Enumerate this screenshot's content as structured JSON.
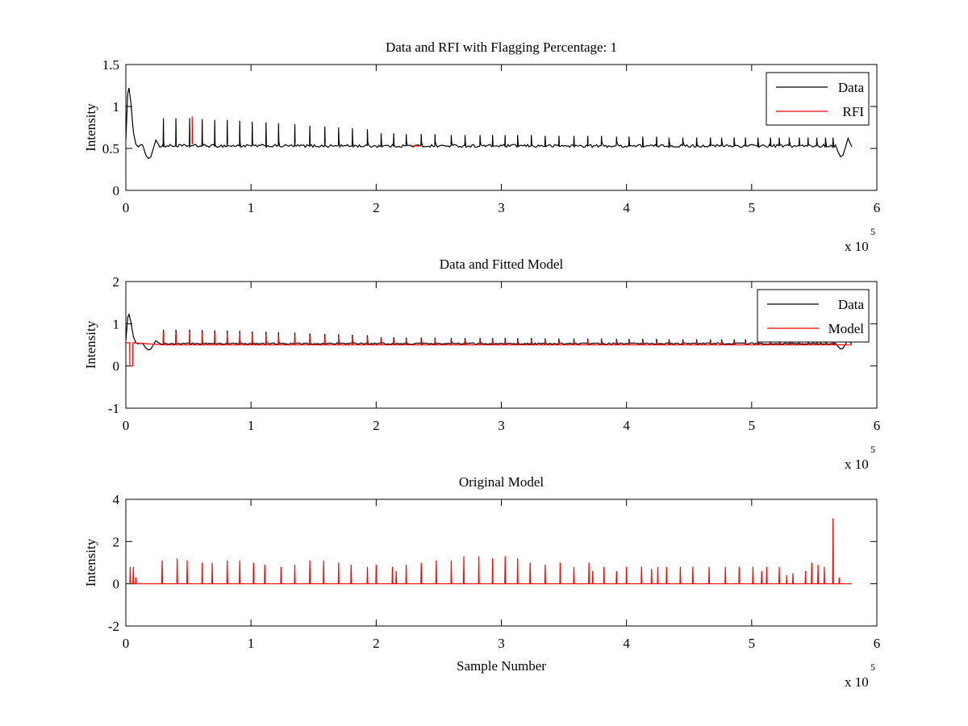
{
  "figure": {
    "background": "#ffffff",
    "axis_color": "#000000"
  },
  "chart_data": [
    {
      "type": "line",
      "title": "Data and RFI with Flagging Percentage: 1",
      "xlabel": "",
      "ylabel": "Intensity",
      "xlim": [
        0,
        600000
      ],
      "ylim": [
        0,
        1.5
      ],
      "xticks": [
        "0",
        "1",
        "2",
        "3",
        "4",
        "5",
        "6"
      ],
      "yticks": [
        "0",
        "0.5",
        "1",
        "1.5"
      ],
      "x_exponent": {
        "base": "x 10",
        "power": "5"
      },
      "legend": "top-right",
      "grid": false,
      "series": [
        {
          "name": "Data",
          "color": "#000000",
          "role": "data",
          "baseline": 0.53,
          "x_end": 580000,
          "spikes": [
            [
              30000,
              0.86
            ],
            [
              40000,
              0.86
            ],
            [
              51000,
              0.86
            ],
            [
              61000,
              0.85
            ],
            [
              71000,
              0.84
            ],
            [
              81000,
              0.84
            ],
            [
              91000,
              0.83
            ],
            [
              101000,
              0.82
            ],
            [
              112000,
              0.81
            ],
            [
              122000,
              0.8
            ],
            [
              135000,
              0.79
            ],
            [
              147000,
              0.77
            ],
            [
              159000,
              0.76
            ],
            [
              170000,
              0.75
            ],
            [
              181000,
              0.74
            ],
            [
              193000,
              0.73
            ],
            [
              204000,
              0.68
            ],
            [
              214000,
              0.68
            ],
            [
              224000,
              0.67
            ],
            [
              236000,
              0.67
            ],
            [
              247000,
              0.67
            ],
            [
              260000,
              0.66
            ],
            [
              271000,
              0.66
            ],
            [
              283000,
              0.66
            ],
            [
              293000,
              0.66
            ],
            [
              303000,
              0.66
            ],
            [
              313000,
              0.66
            ],
            [
              324000,
              0.66
            ],
            [
              335000,
              0.65
            ],
            [
              346000,
              0.65
            ],
            [
              358000,
              0.65
            ],
            [
              369000,
              0.65
            ],
            [
              380000,
              0.65
            ],
            [
              392000,
              0.64
            ],
            [
              402000,
              0.64
            ],
            [
              413000,
              0.64
            ],
            [
              424000,
              0.64
            ],
            [
              434000,
              0.63
            ],
            [
              445000,
              0.63
            ],
            [
              456000,
              0.63
            ],
            [
              467000,
              0.63
            ],
            [
              476000,
              0.63
            ],
            [
              486000,
              0.63
            ],
            [
              495000,
              0.63
            ],
            [
              505000,
              0.63
            ],
            [
              515000,
              0.63
            ],
            [
              522000,
              0.63
            ],
            [
              530000,
              0.63
            ],
            [
              538000,
              0.63
            ],
            [
              545000,
              0.63
            ],
            [
              552000,
              0.63
            ],
            [
              559000,
              0.63
            ],
            [
              565000,
              0.63
            ]
          ]
        },
        {
          "name": "RFI",
          "color": "#ff0000",
          "role": "rfi",
          "segments": [
            [
              [
                53000,
                0.55
              ],
              [
                53000,
                0.88
              ],
              [
                53300,
                0.55
              ]
            ],
            [
              [
                228000,
                0.53
              ],
              [
                236000,
                0.53
              ]
            ]
          ]
        }
      ]
    },
    {
      "type": "line",
      "title": "Data and Fitted Model",
      "xlabel": "",
      "ylabel": "Intensity",
      "xlim": [
        0,
        600000
      ],
      "ylim": [
        -1,
        2
      ],
      "xticks": [
        "0",
        "1",
        "2",
        "3",
        "4",
        "5",
        "6"
      ],
      "yticks": [
        "-1",
        "0",
        "1",
        "2"
      ],
      "x_exponent": {
        "base": "x 10",
        "power": "5"
      },
      "legend": "top-right",
      "grid": false,
      "series": [
        {
          "name": "Data",
          "color": "#000000",
          "role": "data"
        },
        {
          "name": "Model",
          "color": "#ff0000",
          "role": "model"
        }
      ]
    },
    {
      "type": "line",
      "title": "Original Model",
      "xlabel": "Sample Number",
      "ylabel": "Intensity",
      "xlim": [
        0,
        600000
      ],
      "ylim": [
        -2,
        4
      ],
      "xticks": [
        "0",
        "1",
        "2",
        "3",
        "4",
        "5",
        "6"
      ],
      "yticks": [
        "-2",
        "0",
        "2",
        "4"
      ],
      "x_exponent": {
        "base": "x 10",
        "power": "5"
      },
      "legend": "none",
      "grid": false,
      "series": [
        {
          "color": "#ff0000",
          "role": "original",
          "baseline": 0.0,
          "x_start": 3000,
          "x_end": 580000,
          "spikes": [
            [
              3500,
              0.8
            ],
            [
              6000,
              0.8
            ],
            [
              8000,
              0.3
            ],
            [
              29000,
              1.1
            ],
            [
              41000,
              1.2
            ],
            [
              49000,
              1.1
            ],
            [
              61000,
              1.0
            ],
            [
              69000,
              1.0
            ],
            [
              81000,
              1.1
            ],
            [
              91000,
              1.1
            ],
            [
              102000,
              1.0
            ],
            [
              111000,
              0.9
            ],
            [
              124000,
              0.8
            ],
            [
              135000,
              0.9
            ],
            [
              147000,
              1.1
            ],
            [
              158000,
              1.1
            ],
            [
              170000,
              1.0
            ],
            [
              180000,
              0.9
            ],
            [
              193000,
              0.8
            ],
            [
              200000,
              0.9
            ],
            [
              213000,
              0.8
            ],
            [
              216000,
              0.6
            ],
            [
              224000,
              0.9
            ],
            [
              236000,
              1.0
            ],
            [
              248000,
              1.1
            ],
            [
              260000,
              1.1
            ],
            [
              270000,
              1.3
            ],
            [
              282000,
              1.3
            ],
            [
              293000,
              1.2
            ],
            [
              303000,
              1.3
            ],
            [
              313000,
              1.2
            ],
            [
              323000,
              1.0
            ],
            [
              335000,
              0.9
            ],
            [
              347000,
              1.0
            ],
            [
              358000,
              0.8
            ],
            [
              370000,
              1.0
            ],
            [
              373000,
              0.6
            ],
            [
              382000,
              0.8
            ],
            [
              392000,
              0.6
            ],
            [
              400000,
              0.8
            ],
            [
              412000,
              0.8
            ],
            [
              420000,
              0.7
            ],
            [
              425000,
              0.8
            ],
            [
              432000,
              0.8
            ],
            [
              443000,
              0.8
            ],
            [
              453000,
              0.8
            ],
            [
              466000,
              0.8
            ],
            [
              479000,
              0.8
            ],
            [
              490000,
              0.8
            ],
            [
              501000,
              0.8
            ],
            [
              508000,
              0.6
            ],
            [
              512000,
              0.8
            ],
            [
              522000,
              0.8
            ],
            [
              528000,
              0.4
            ],
            [
              533000,
              0.5
            ],
            [
              543000,
              0.6
            ],
            [
              548000,
              1.0
            ],
            [
              553000,
              0.9
            ],
            [
              558000,
              0.8
            ],
            [
              565000,
              3.1
            ],
            [
              570000,
              0.3
            ]
          ]
        }
      ]
    }
  ]
}
